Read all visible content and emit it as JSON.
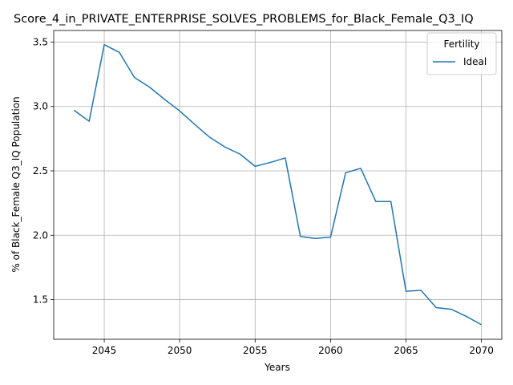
{
  "chart_data": {
    "type": "line",
    "title": "Score_4_in_PRIVATE_ENTERPRISE_SOLVES_PROBLEMS_for_Black_Female_Q3_IQ",
    "xlabel": "Years",
    "ylabel": "% of Black_Female Q3_IQ Population",
    "xlim": [
      2041.65,
      2071.35
    ],
    "ylim": [
      1.192,
      3.59
    ],
    "xticks": [
      2045,
      2050,
      2055,
      2060,
      2065,
      2070
    ],
    "yticks": [
      1.5,
      2.0,
      2.5,
      3.0,
      3.5
    ],
    "xtick_labels": [
      "2045",
      "2050",
      "2055",
      "2060",
      "2065",
      "2070"
    ],
    "ytick_labels": [
      "1.5",
      "2.0",
      "2.5",
      "3.0",
      "3.5"
    ],
    "grid": true,
    "legend": {
      "title": "Fertility",
      "placement": "top-right"
    },
    "series": [
      {
        "name": "Ideal",
        "color": "#1f77b4",
        "x": [
          2043,
          2044,
          2045,
          2046,
          2047,
          2048,
          2049,
          2050,
          2051,
          2052,
          2053,
          2054,
          2055,
          2056,
          2057,
          2058,
          2059,
          2060,
          2061,
          2062,
          2063,
          2064,
          2065,
          2066,
          2067,
          2068,
          2069,
          2070
        ],
        "values": [
          2.97,
          2.885,
          3.48,
          3.42,
          3.225,
          3.15,
          3.055,
          2.965,
          2.86,
          2.76,
          2.685,
          2.63,
          2.535,
          2.565,
          2.6,
          1.99,
          1.975,
          1.985,
          2.485,
          2.52,
          2.262,
          2.262,
          1.565,
          1.572,
          1.438,
          1.425,
          1.37,
          1.305
        ]
      }
    ]
  }
}
